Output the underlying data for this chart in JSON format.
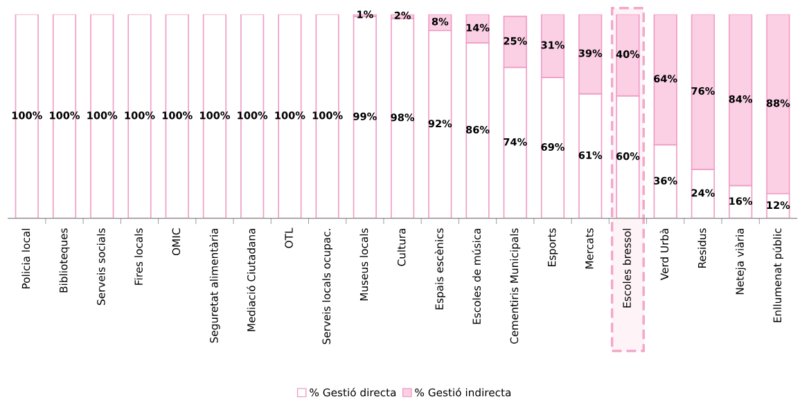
{
  "chart_data": {
    "type": "bar",
    "stacked": true,
    "legend": "bottom",
    "grid": false,
    "categories": [
      "Policia local",
      "Biblioteques",
      "Serveis socials",
      "Fires locals",
      "OMIC",
      "Seguretat alimentària",
      "Mediació Ciutadana",
      "OTL",
      "Serveis locals ocupac.",
      "Museus locals",
      "Cultura",
      "Espais escènics",
      "Escoles de música",
      "Cementiris Municipals",
      "Esports",
      "Mercats",
      "Escoles bressol",
      "Verd Urbà",
      "Residus",
      "Neteja viària",
      "Enllumenat públic"
    ],
    "series": [
      {
        "name": "% Gestió directa",
        "color": "#ffffff",
        "values": [
          100,
          100,
          100,
          100,
          100,
          100,
          100,
          100,
          100,
          99,
          98,
          92,
          86,
          74,
          69,
          61,
          60,
          36,
          24,
          16,
          12
        ],
        "value_labels": [
          "100%",
          "100%",
          "100%",
          "100%",
          "100%",
          "100%",
          "100%",
          "100%",
          "100%",
          "99%",
          "98%",
          "92%",
          "86%",
          "74%",
          "69%",
          "61%",
          "60%",
          "36%",
          "24%",
          "16%",
          "12%"
        ]
      },
      {
        "name": "% Gestió indirecta",
        "color": "#fbd0e5",
        "values": [
          0,
          0,
          0,
          0,
          0,
          0,
          0,
          0,
          0,
          1,
          2,
          8,
          14,
          25,
          31,
          39,
          40,
          64,
          76,
          84,
          88
        ],
        "value_labels": [
          null,
          null,
          null,
          null,
          null,
          null,
          null,
          null,
          null,
          "1%",
          "2%",
          "8%",
          "14%",
          "25%",
          "31%",
          "39%",
          "40%",
          "64%",
          "76%",
          "84%",
          "88%"
        ]
      }
    ],
    "bands": [
      {
        "axis": "x",
        "from": "Escoles bressol",
        "to": "Escoles bressol",
        "color": "#f4a6c9"
      }
    ]
  }
}
